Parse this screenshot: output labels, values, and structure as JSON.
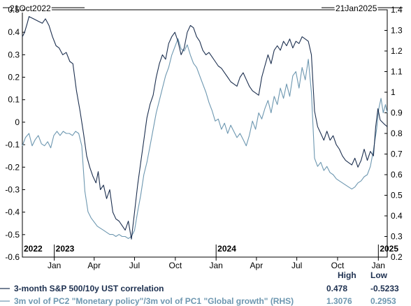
{
  "chart_data": {
    "type": "line",
    "start_label": "21Oct2022",
    "end_label": "21Jan2025",
    "x_start": "2022-10-21",
    "x_end": "2025-01-21",
    "month_ticks": [
      {
        "label": "Jan",
        "date": "2023-01-01"
      },
      {
        "label": "Apr",
        "date": "2023-04-01"
      },
      {
        "label": "Jul",
        "date": "2023-07-01"
      },
      {
        "label": "Oct",
        "date": "2023-10-01"
      },
      {
        "label": "Jan",
        "date": "2024-01-01"
      },
      {
        "label": "Apr",
        "date": "2024-04-01"
      },
      {
        "label": "Jul",
        "date": "2024-07-01"
      },
      {
        "label": "Oct",
        "date": "2024-10-01"
      },
      {
        "label": "Jan",
        "date": "2025-01-01"
      }
    ],
    "year_labels": [
      {
        "label": "2022",
        "date": "2022-10-21"
      },
      {
        "label": "2023",
        "date": "2023-01-01"
      },
      {
        "label": "2024",
        "date": "2024-01-01"
      },
      {
        "label": "2025",
        "date": "2025-01-01"
      }
    ],
    "y_left": {
      "min": -0.6,
      "max": 0.5,
      "ticks": [
        "0.5",
        "0.4",
        "0.3",
        "0.2",
        "0.1",
        "0",
        "-0.1",
        "-0.2",
        "-0.3",
        "-0.4",
        "-0.5",
        "-0.6"
      ]
    },
    "y_right": {
      "min": 0.2,
      "max": 1.4,
      "ticks": [
        "1.4",
        "1.3",
        "1.2",
        "1.1",
        "1",
        "0.9",
        "0.8",
        "0.7",
        "0.6",
        "0.5",
        "0.4",
        "0.3",
        "0.2"
      ]
    },
    "legend_headers": {
      "high": "High",
      "low": "Low"
    },
    "series": [
      {
        "name": "3-month S&P 500/10y UST correlation",
        "axis": "left",
        "color": "#1c2f4f",
        "high": "0.478",
        "low": "-0.5233",
        "points": [
          [
            "2022-10-21",
            0.38
          ],
          [
            "2022-10-26",
            0.4
          ],
          [
            "2022-11-01",
            0.44
          ],
          [
            "2022-11-05",
            0.47
          ],
          [
            "2022-11-15",
            0.46
          ],
          [
            "2022-11-25",
            0.45
          ],
          [
            "2022-12-05",
            0.44
          ],
          [
            "2022-12-12",
            0.46
          ],
          [
            "2022-12-20",
            0.43
          ],
          [
            "2022-12-28",
            0.38
          ],
          [
            "2023-01-05",
            0.34
          ],
          [
            "2023-01-12",
            0.33
          ],
          [
            "2023-01-20",
            0.3
          ],
          [
            "2023-01-28",
            0.31
          ],
          [
            "2023-02-05",
            0.27
          ],
          [
            "2023-02-12",
            0.26
          ],
          [
            "2023-02-20",
            0.14
          ],
          [
            "2023-02-28",
            0.05
          ],
          [
            "2023-03-08",
            -0.05
          ],
          [
            "2023-03-15",
            -0.15
          ],
          [
            "2023-03-22",
            -0.2
          ],
          [
            "2023-03-29",
            -0.24
          ],
          [
            "2023-04-05",
            -0.27
          ],
          [
            "2023-04-10",
            -0.22
          ],
          [
            "2023-04-15",
            -0.3
          ],
          [
            "2023-04-22",
            -0.28
          ],
          [
            "2023-04-29",
            -0.34
          ],
          [
            "2023-05-06",
            -0.3
          ],
          [
            "2023-05-13",
            -0.4
          ],
          [
            "2023-05-20",
            -0.43
          ],
          [
            "2023-05-27",
            -0.44
          ],
          [
            "2023-06-03",
            -0.46
          ],
          [
            "2023-06-10",
            -0.48
          ],
          [
            "2023-06-17",
            -0.44
          ],
          [
            "2023-06-24",
            -0.52
          ],
          [
            "2023-07-01",
            -0.4
          ],
          [
            "2023-07-08",
            -0.28
          ],
          [
            "2023-07-15",
            -0.18
          ],
          [
            "2023-07-22",
            -0.08
          ],
          [
            "2023-07-29",
            0.02
          ],
          [
            "2023-08-05",
            0.08
          ],
          [
            "2023-08-12",
            0.12
          ],
          [
            "2023-08-19",
            0.2
          ],
          [
            "2023-08-26",
            0.26
          ],
          [
            "2023-09-02",
            0.3
          ],
          [
            "2023-09-09",
            0.28
          ],
          [
            "2023-09-16",
            0.35
          ],
          [
            "2023-09-23",
            0.38
          ],
          [
            "2023-09-30",
            0.4
          ],
          [
            "2023-10-07",
            0.36
          ],
          [
            "2023-10-14",
            0.3
          ],
          [
            "2023-10-21",
            0.33
          ],
          [
            "2023-10-28",
            0.4
          ],
          [
            "2023-11-04",
            0.43
          ],
          [
            "2023-11-11",
            0.42
          ],
          [
            "2023-11-18",
            0.38
          ],
          [
            "2023-11-25",
            0.36
          ],
          [
            "2023-12-02",
            0.32
          ],
          [
            "2023-12-09",
            0.3
          ],
          [
            "2023-12-16",
            0.31
          ],
          [
            "2023-12-23",
            0.29
          ],
          [
            "2023-12-30",
            0.27
          ],
          [
            "2024-01-06",
            0.25
          ],
          [
            "2024-01-13",
            0.24
          ],
          [
            "2024-01-20",
            0.22
          ],
          [
            "2024-01-27",
            0.2
          ],
          [
            "2024-02-03",
            0.18
          ],
          [
            "2024-02-10",
            0.17
          ],
          [
            "2024-02-17",
            0.16
          ],
          [
            "2024-02-24",
            0.2
          ],
          [
            "2024-03-02",
            0.22
          ],
          [
            "2024-03-09",
            0.19
          ],
          [
            "2024-03-16",
            0.16
          ],
          [
            "2024-03-23",
            0.14
          ],
          [
            "2024-03-30",
            0.13
          ],
          [
            "2024-04-06",
            0.12
          ],
          [
            "2024-04-13",
            0.2
          ],
          [
            "2024-04-20",
            0.25
          ],
          [
            "2024-04-27",
            0.3
          ],
          [
            "2024-05-04",
            0.26
          ],
          [
            "2024-05-11",
            0.32
          ],
          [
            "2024-05-18",
            0.34
          ],
          [
            "2024-05-25",
            0.32
          ],
          [
            "2024-06-01",
            0.36
          ],
          [
            "2024-06-08",
            0.34
          ],
          [
            "2024-06-15",
            0.37
          ],
          [
            "2024-06-22",
            0.33
          ],
          [
            "2024-06-29",
            0.36
          ],
          [
            "2024-07-06",
            0.35
          ],
          [
            "2024-07-13",
            0.38
          ],
          [
            "2024-07-20",
            0.37
          ],
          [
            "2024-07-27",
            0.36
          ],
          [
            "2024-08-03",
            0.3
          ],
          [
            "2024-08-10",
            0.05
          ],
          [
            "2024-08-17",
            -0.02
          ],
          [
            "2024-08-24",
            -0.05
          ],
          [
            "2024-08-31",
            -0.08
          ],
          [
            "2024-09-07",
            -0.04
          ],
          [
            "2024-09-14",
            -0.08
          ],
          [
            "2024-09-21",
            -0.06
          ],
          [
            "2024-09-28",
            -0.1
          ],
          [
            "2024-10-05",
            -0.12
          ],
          [
            "2024-10-12",
            -0.15
          ],
          [
            "2024-10-19",
            -0.17
          ],
          [
            "2024-10-26",
            -0.18
          ],
          [
            "2024-11-02",
            -0.19
          ],
          [
            "2024-11-09",
            -0.16
          ],
          [
            "2024-11-16",
            -0.2
          ],
          [
            "2024-11-23",
            -0.17
          ],
          [
            "2024-11-30",
            -0.12
          ],
          [
            "2024-12-07",
            -0.17
          ],
          [
            "2024-12-14",
            -0.13
          ],
          [
            "2024-12-21",
            -0.15
          ],
          [
            "2024-12-26",
            -0.02
          ],
          [
            "2024-12-31",
            0.06
          ],
          [
            "2025-01-05",
            0.01
          ],
          [
            "2025-01-10",
            0.0
          ],
          [
            "2025-01-15",
            -0.01
          ],
          [
            "2025-01-21",
            -0.02
          ]
        ]
      },
      {
        "name": "3m vol of PC2 \"Monetary policy\"/3m vol of PC1 \"Global growth\" (RHS)",
        "axis": "right",
        "color": "#6d97b0",
        "high": "1.3076",
        "low": "0.2953",
        "points": [
          [
            "2022-10-21",
            0.74
          ],
          [
            "2022-10-28",
            0.78
          ],
          [
            "2022-11-05",
            0.8
          ],
          [
            "2022-11-12",
            0.74
          ],
          [
            "2022-11-19",
            0.77
          ],
          [
            "2022-11-26",
            0.79
          ],
          [
            "2022-12-03",
            0.75
          ],
          [
            "2022-12-10",
            0.74
          ],
          [
            "2022-12-17",
            0.76
          ],
          [
            "2022-12-24",
            0.73
          ],
          [
            "2022-12-31",
            0.79
          ],
          [
            "2023-01-07",
            0.81
          ],
          [
            "2023-01-14",
            0.79
          ],
          [
            "2023-01-21",
            0.81
          ],
          [
            "2023-01-28",
            0.8
          ],
          [
            "2023-02-04",
            0.8
          ],
          [
            "2023-02-11",
            0.79
          ],
          [
            "2023-02-18",
            0.81
          ],
          [
            "2023-02-25",
            0.8
          ],
          [
            "2023-03-04",
            0.74
          ],
          [
            "2023-03-11",
            0.52
          ],
          [
            "2023-03-18",
            0.42
          ],
          [
            "2023-03-25",
            0.39
          ],
          [
            "2023-04-01",
            0.37
          ],
          [
            "2023-04-08",
            0.35
          ],
          [
            "2023-04-15",
            0.34
          ],
          [
            "2023-04-22",
            0.33
          ],
          [
            "2023-04-29",
            0.32
          ],
          [
            "2023-05-06",
            0.31
          ],
          [
            "2023-05-13",
            0.31
          ],
          [
            "2023-05-20",
            0.3
          ],
          [
            "2023-05-27",
            0.31
          ],
          [
            "2023-06-03",
            0.3
          ],
          [
            "2023-06-10",
            0.3
          ],
          [
            "2023-06-17",
            0.29
          ],
          [
            "2023-06-24",
            0.3
          ],
          [
            "2023-07-01",
            0.33
          ],
          [
            "2023-07-08",
            0.42
          ],
          [
            "2023-07-15",
            0.5
          ],
          [
            "2023-07-22",
            0.6
          ],
          [
            "2023-07-29",
            0.66
          ],
          [
            "2023-08-05",
            0.74
          ],
          [
            "2023-08-12",
            0.82
          ],
          [
            "2023-08-19",
            0.9
          ],
          [
            "2023-08-26",
            0.96
          ],
          [
            "2023-09-02",
            1.02
          ],
          [
            "2023-09-09",
            1.08
          ],
          [
            "2023-09-16",
            1.12
          ],
          [
            "2023-09-23",
            1.18
          ],
          [
            "2023-09-30",
            1.22
          ],
          [
            "2023-10-07",
            1.26
          ],
          [
            "2023-10-14",
            1.21
          ],
          [
            "2023-10-21",
            1.2
          ],
          [
            "2023-10-28",
            1.23
          ],
          [
            "2023-11-04",
            1.18
          ],
          [
            "2023-11-11",
            1.14
          ],
          [
            "2023-11-18",
            1.12
          ],
          [
            "2023-11-25",
            1.08
          ],
          [
            "2023-12-02",
            1.04
          ],
          [
            "2023-12-09",
            1.0
          ],
          [
            "2023-12-16",
            0.95
          ],
          [
            "2023-12-23",
            0.91
          ],
          [
            "2023-12-30",
            0.86
          ],
          [
            "2024-01-06",
            0.87
          ],
          [
            "2024-01-13",
            0.82
          ],
          [
            "2024-01-20",
            0.85
          ],
          [
            "2024-01-27",
            0.8
          ],
          [
            "2024-02-03",
            0.84
          ],
          [
            "2024-02-10",
            0.81
          ],
          [
            "2024-02-17",
            0.78
          ],
          [
            "2024-02-24",
            0.8
          ],
          [
            "2024-03-02",
            0.77
          ],
          [
            "2024-03-09",
            0.74
          ],
          [
            "2024-03-16",
            0.79
          ],
          [
            "2024-03-23",
            0.86
          ],
          [
            "2024-03-30",
            0.82
          ],
          [
            "2024-04-06",
            0.9
          ],
          [
            "2024-04-13",
            0.87
          ],
          [
            "2024-04-20",
            0.92
          ],
          [
            "2024-04-27",
            0.96
          ],
          [
            "2024-05-04",
            0.9
          ],
          [
            "2024-05-11",
            0.98
          ],
          [
            "2024-05-18",
            0.94
          ],
          [
            "2024-05-25",
            1.02
          ],
          [
            "2024-06-01",
            0.97
          ],
          [
            "2024-06-08",
            1.04
          ],
          [
            "2024-06-15",
            0.98
          ],
          [
            "2024-06-22",
            1.08
          ],
          [
            "2024-06-29",
            1.1
          ],
          [
            "2024-07-06",
            1.02
          ],
          [
            "2024-07-13",
            1.12
          ],
          [
            "2024-07-20",
            1.06
          ],
          [
            "2024-07-27",
            1.16
          ],
          [
            "2024-08-03",
            1.0
          ],
          [
            "2024-08-10",
            0.68
          ],
          [
            "2024-08-17",
            0.64
          ],
          [
            "2024-08-24",
            0.66
          ],
          [
            "2024-08-31",
            0.62
          ],
          [
            "2024-09-07",
            0.64
          ],
          [
            "2024-09-14",
            0.61
          ],
          [
            "2024-09-21",
            0.6
          ],
          [
            "2024-09-28",
            0.58
          ],
          [
            "2024-10-05",
            0.57
          ],
          [
            "2024-10-12",
            0.56
          ],
          [
            "2024-10-19",
            0.55
          ],
          [
            "2024-10-26",
            0.54
          ],
          [
            "2024-11-02",
            0.53
          ],
          [
            "2024-11-09",
            0.54
          ],
          [
            "2024-11-16",
            0.56
          ],
          [
            "2024-11-23",
            0.57
          ],
          [
            "2024-11-30",
            0.59
          ],
          [
            "2024-12-07",
            0.6
          ],
          [
            "2024-12-14",
            0.64
          ],
          [
            "2024-12-21",
            0.72
          ],
          [
            "2024-12-28",
            0.82
          ],
          [
            "2025-01-02",
            0.92
          ],
          [
            "2025-01-07",
            0.97
          ],
          [
            "2025-01-12",
            0.9
          ],
          [
            "2025-01-17",
            0.94
          ],
          [
            "2025-01-21",
            0.9
          ]
        ]
      }
    ]
  }
}
